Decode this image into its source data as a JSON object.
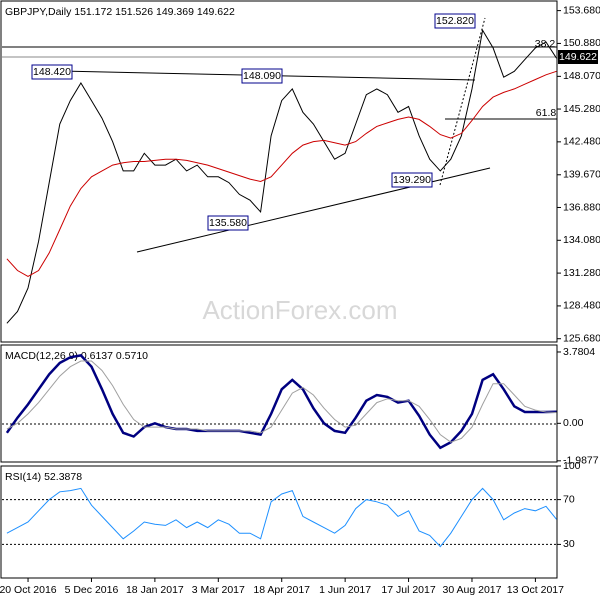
{
  "chart_data": [
    {
      "type": "line",
      "title": "GBPJPY,Daily 151.172 151.526 149.369 149.622",
      "ylim": [
        125.4,
        154.5
      ],
      "yticks": [
        {
          "value": 153.68,
          "label": "153.680"
        },
        {
          "value": 150.88,
          "label": "150.880"
        },
        {
          "value": 148.07,
          "label": "148.070"
        },
        {
          "value": 145.28,
          "label": "145.280"
        },
        {
          "value": 142.48,
          "label": "142.480"
        },
        {
          "value": 139.67,
          "label": "139.670"
        },
        {
          "value": 136.88,
          "label": "136.880"
        },
        {
          "value": 134.08,
          "label": "134.080"
        },
        {
          "value": 131.28,
          "label": "131.280"
        },
        {
          "value": 128.48,
          "label": "128.480"
        },
        {
          "value": 125.68,
          "label": "125.680"
        }
      ],
      "series": [
        {
          "name": "GBPJPY",
          "color": "#000000",
          "values": [
            127,
            128,
            130,
            134,
            139,
            144,
            146,
            147.5,
            146,
            144.5,
            142.5,
            140,
            140,
            141.5,
            140.5,
            140.5,
            141,
            140,
            140.5,
            139.5,
            139.5,
            139,
            138,
            137.5,
            136.5,
            143,
            146,
            147,
            145,
            144,
            142.5,
            141,
            141.5,
            144,
            146.5,
            147,
            146.5,
            145,
            145.5,
            143,
            141,
            140,
            141,
            143,
            147,
            152,
            150.5,
            148,
            148.5,
            149.5,
            150.5,
            151,
            149.622
          ]
        },
        {
          "name": "MA",
          "color": "#cc0000",
          "values": [
            132.5,
            131.5,
            131,
            131.5,
            133,
            135,
            137,
            138.5,
            139.5,
            140,
            140.5,
            140.7,
            140.8,
            140.8,
            140.9,
            141,
            141,
            140.9,
            140.7,
            140.5,
            140.2,
            139.9,
            139.6,
            139.3,
            139.1,
            139.5,
            140.5,
            141.5,
            142.2,
            142.5,
            142.6,
            142.4,
            142.2,
            142.5,
            143.2,
            143.8,
            144.1,
            144.4,
            144.6,
            144.4,
            143.8,
            143.1,
            142.8,
            143.2,
            144.3,
            145.5,
            146.3,
            146.7,
            147,
            147.4,
            147.8,
            148.2,
            148.5
          ]
        }
      ],
      "annotations": [
        "152.820",
        "148.420",
        "148.090",
        "135.580",
        "139.290",
        "38.2",
        "61.8",
        "149.622"
      ],
      "watermark": "ActionForex.com"
    },
    {
      "type": "line",
      "title": "MACD(12,26,9) 0.6137 0.5710",
      "ylim": [
        -2.05,
        4.15
      ],
      "yticks": [
        3.7804,
        {
          "value": 0,
          "label": "0.00"
        },
        -1.9877
      ],
      "series": [
        {
          "name": "MACD",
          "color": "#000080",
          "values": [
            -0.5,
            0.3,
            1.0,
            1.8,
            2.6,
            3.2,
            3.5,
            3.6,
            3.0,
            1.8,
            0.5,
            -0.5,
            -0.7,
            -0.2,
            0.0,
            -0.2,
            -0.3,
            -0.3,
            -0.4,
            -0.4,
            -0.4,
            -0.4,
            -0.4,
            -0.5,
            -0.6,
            0.5,
            1.8,
            2.3,
            1.8,
            0.8,
            0.0,
            -0.4,
            -0.5,
            0.3,
            1.2,
            1.5,
            1.4,
            1.1,
            1.2,
            0.4,
            -0.6,
            -1.3,
            -1.0,
            -0.4,
            0.5,
            2.3,
            2.6,
            1.8,
            0.9,
            0.6,
            0.6,
            0.6,
            0.6137
          ]
        },
        {
          "name": "Signal",
          "color": "#a0a0a0",
          "values": [
            -0.3,
            0.0,
            0.5,
            1.1,
            1.8,
            2.5,
            3.0,
            3.3,
            3.3,
            2.8,
            2.0,
            1.0,
            0.2,
            -0.2,
            -0.2,
            -0.2,
            -0.3,
            -0.3,
            -0.3,
            -0.4,
            -0.4,
            -0.4,
            -0.4,
            -0.4,
            -0.5,
            -0.2,
            0.7,
            1.6,
            1.9,
            1.5,
            0.8,
            0.2,
            -0.2,
            -0.1,
            0.5,
            1.1,
            1.3,
            1.2,
            1.2,
            0.9,
            0.2,
            -0.6,
            -1.0,
            -0.8,
            -0.2,
            1.0,
            2.1,
            2.1,
            1.5,
            0.9,
            0.7,
            0.6,
            0.571
          ]
        }
      ]
    },
    {
      "type": "line",
      "title": "RSI(14) 52.3878",
      "ylim": [
        0,
        100
      ],
      "yticks": [
        100,
        70,
        30
      ],
      "categories": [
        null,
        null,
        "20 Oct 2016",
        null,
        null,
        null,
        null,
        null,
        "5 Dec 2016",
        null,
        null,
        null,
        null,
        null,
        "18 Jan 2017",
        null,
        null,
        null,
        null,
        null,
        "3 Mar 2017",
        null,
        null,
        null,
        null,
        null,
        "18 Apr 2017",
        null,
        null,
        null,
        null,
        null,
        "1 Jun 2017",
        null,
        null,
        null,
        null,
        null,
        "17 Jul 2017",
        null,
        null,
        null,
        null,
        null,
        "30 Aug 2017",
        null,
        null,
        null,
        null,
        null,
        "13 Oct 2017",
        null,
        null
      ],
      "series": [
        {
          "name": "RSI",
          "color": "#1e90ff",
          "values": [
            40,
            45,
            50,
            60,
            70,
            77,
            78,
            80,
            65,
            55,
            45,
            35,
            42,
            50,
            48,
            47,
            52,
            45,
            50,
            45,
            52,
            48,
            40,
            40,
            35,
            68,
            75,
            78,
            55,
            50,
            45,
            40,
            47,
            62,
            70,
            68,
            65,
            55,
            60,
            42,
            38,
            28,
            40,
            55,
            70,
            80,
            70,
            52,
            58,
            62,
            60,
            64,
            52.3878
          ]
        }
      ]
    }
  ]
}
